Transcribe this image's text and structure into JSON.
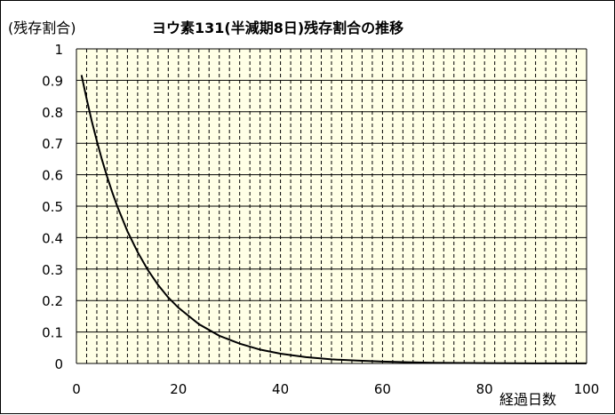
{
  "chart_data": {
    "type": "line",
    "title": "ヨウ素131(半減期8日)残存割合の推移",
    "xlabel": "経過日数",
    "ylabel": "(残存割合)",
    "xlim": [
      0,
      100
    ],
    "ylim": [
      0,
      1
    ],
    "x_ticks": [
      0,
      20,
      40,
      60,
      80,
      100
    ],
    "y_ticks": [
      0,
      0.1,
      0.2,
      0.3,
      0.4,
      0.5,
      0.6,
      0.7,
      0.8,
      0.9,
      1
    ],
    "x_tick_labels": [
      "0",
      "20",
      "40",
      "60",
      "80",
      "100"
    ],
    "y_tick_labels": [
      "0",
      "0.1",
      "0.2",
      "0.3",
      "0.4",
      "0.5",
      "0.6",
      "0.7",
      "0.8",
      "0.9",
      "1"
    ],
    "grid": "horizontal solid lines every 0.1; vertical dashed lines every 2 days",
    "legend": "none",
    "colors": {
      "plot_background": "#ffffe6",
      "line": "#000000",
      "grid": "#000000"
    },
    "series": [
      {
        "x": [
          1,
          2,
          3,
          4,
          5,
          6,
          7,
          8,
          10,
          12,
          14,
          16,
          18,
          20,
          24,
          28,
          32,
          36,
          40,
          45,
          50,
          55,
          60,
          65,
          70,
          80,
          90,
          100
        ],
        "y": [
          0.917,
          0.841,
          0.771,
          0.707,
          0.648,
          0.595,
          0.545,
          0.5,
          0.42,
          0.354,
          0.297,
          0.25,
          0.21,
          0.177,
          0.125,
          0.088,
          0.063,
          0.044,
          0.031,
          0.02,
          0.013,
          0.009,
          0.006,
          0.004,
          0.002,
          0.001,
          0.0004,
          0.0002
        ]
      }
    ]
  }
}
